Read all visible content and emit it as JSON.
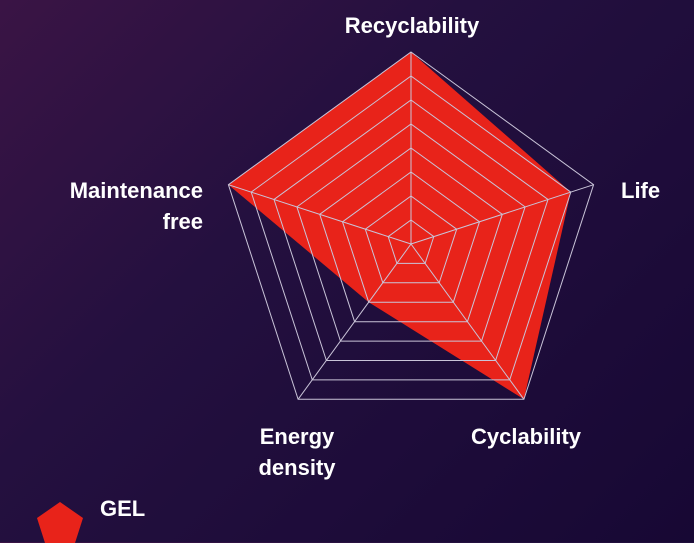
{
  "chart_data": {
    "type": "radar",
    "axes": [
      "Recyclability",
      "Life",
      "Cyclability",
      "Energy\ndensity",
      "Maintenance\nfree"
    ],
    "levels": 8,
    "range": [
      0,
      8
    ],
    "grid": true,
    "legend_position": "bottom-left",
    "series": [
      {
        "name": "GEL",
        "color": "#e8231a",
        "values": [
          8,
          7,
          8,
          3,
          8
        ]
      }
    ]
  },
  "colors": {
    "grid": "#c9c4d8",
    "label": "#ffffff"
  }
}
